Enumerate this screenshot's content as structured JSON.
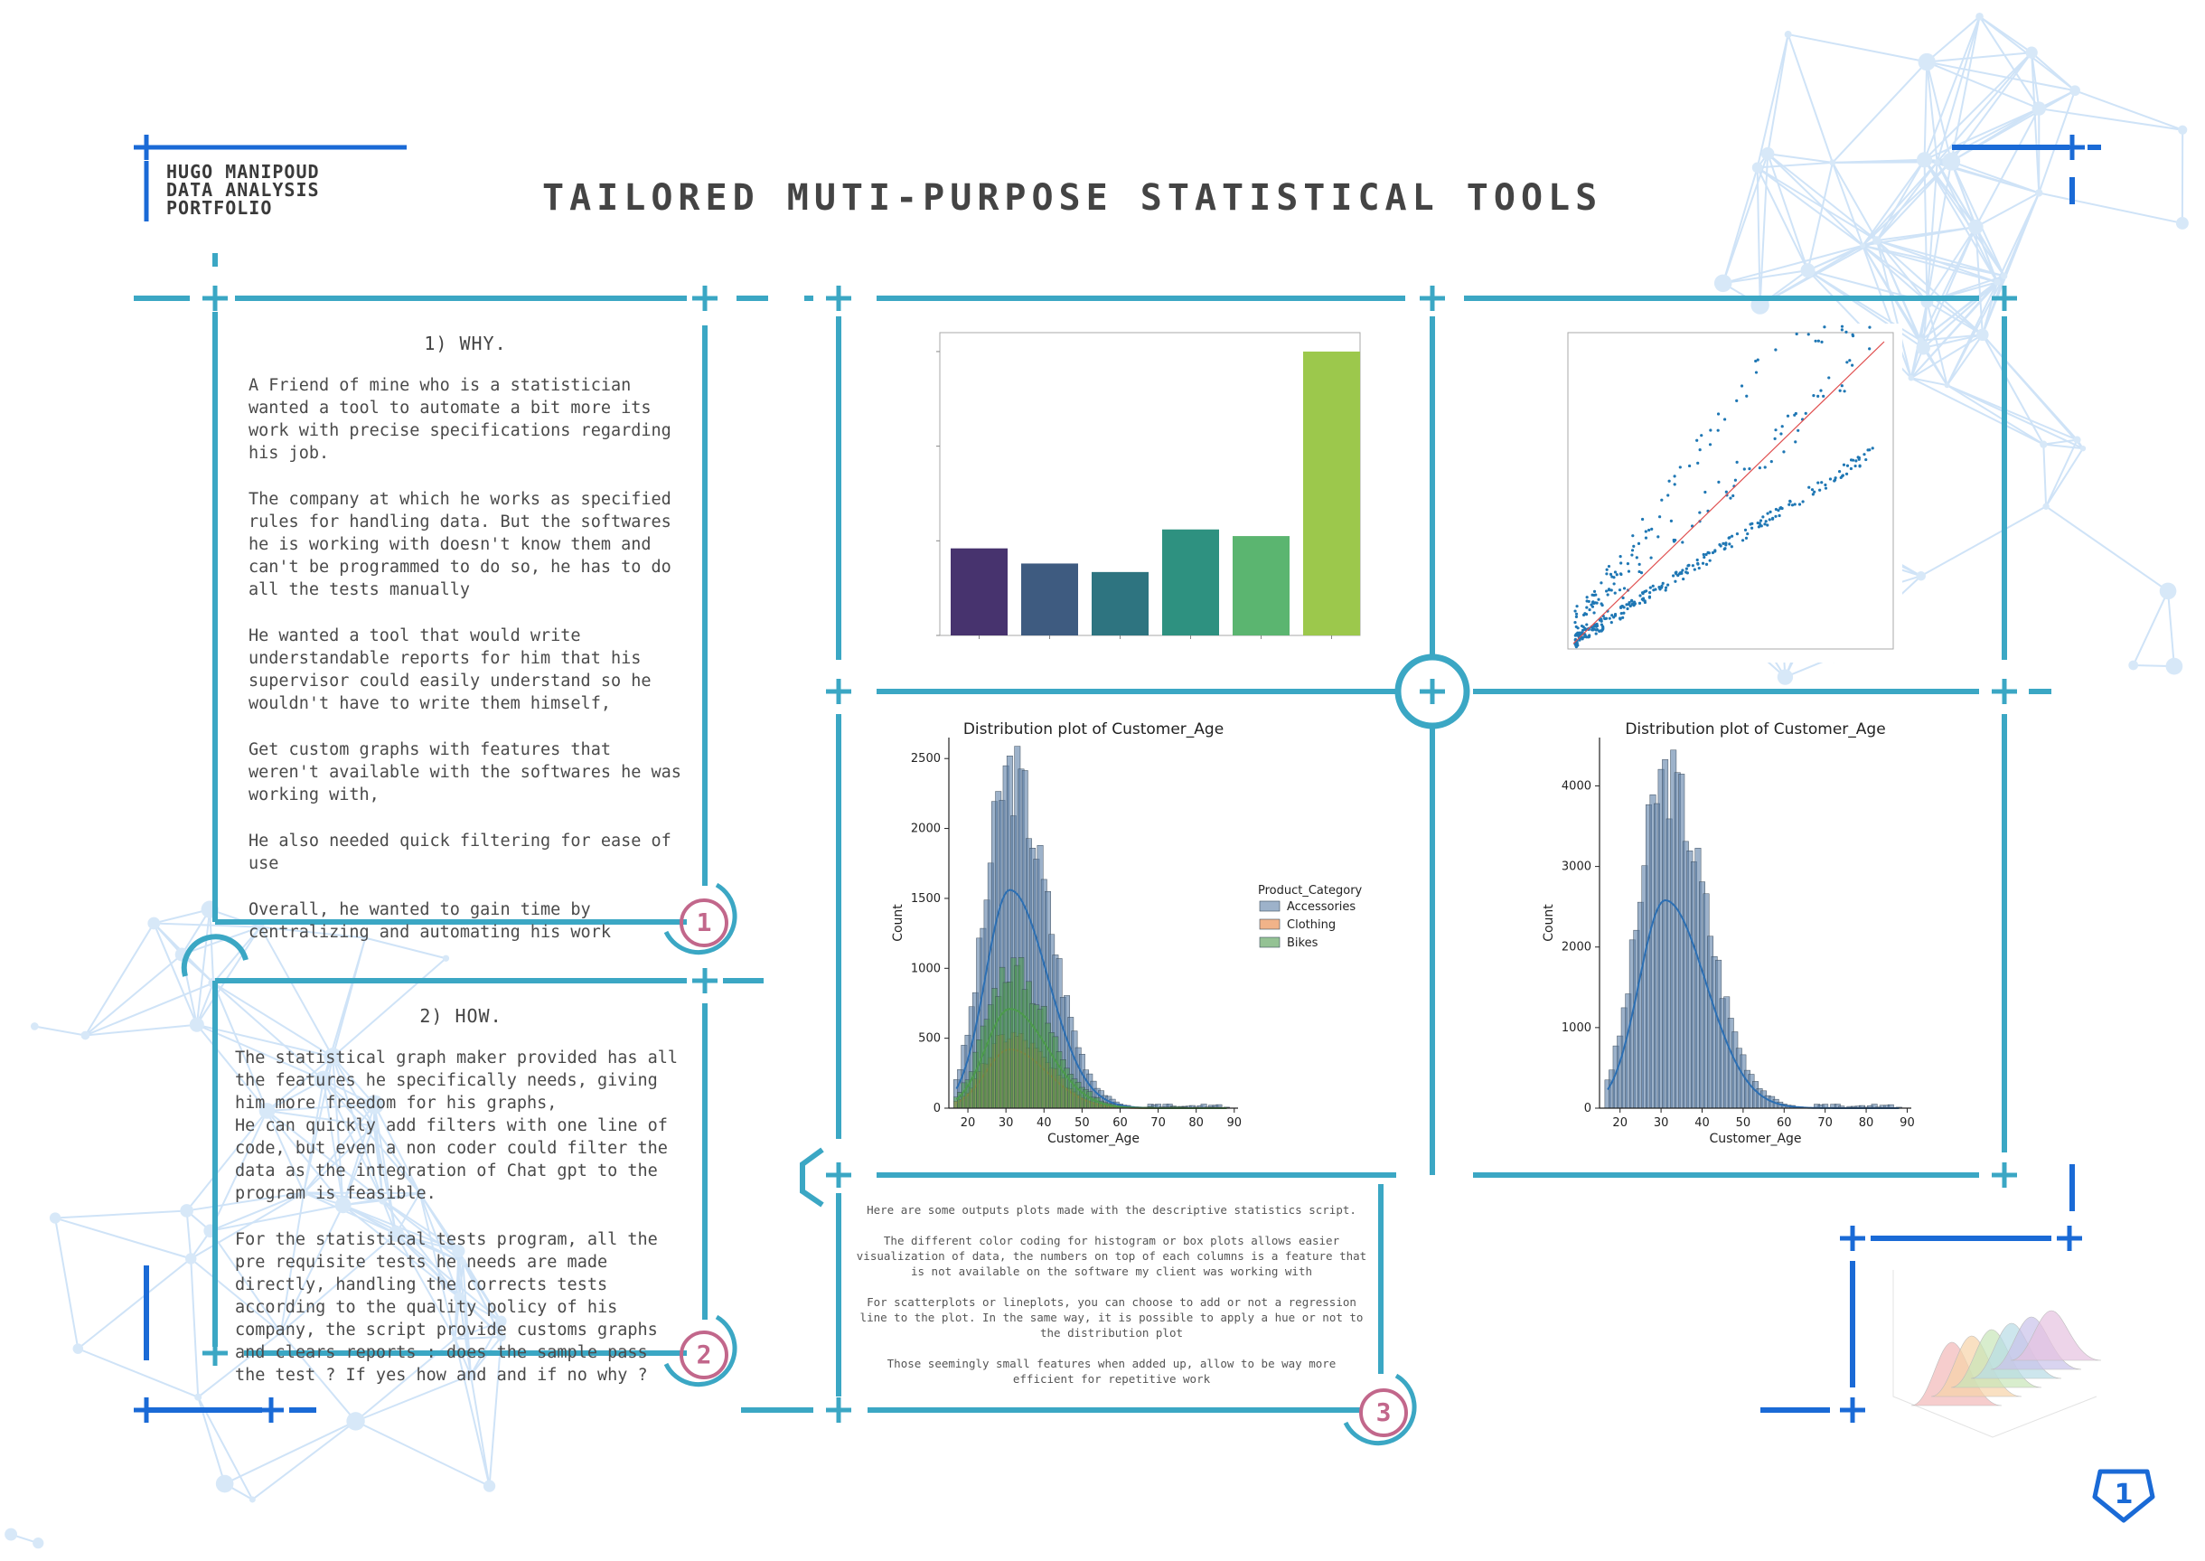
{
  "header": {
    "author_lines": [
      "Hugo Manipoud",
      "Data Analysis",
      "Portfolio"
    ],
    "title": "Tailored muti-purpose statistical tools"
  },
  "colors": {
    "frame": "#3ba7c4",
    "accent_blue": "#1a6ad6",
    "badge": "#c2678b"
  },
  "why": {
    "heading": "1) WHY.",
    "paragraphs": [
      "A Friend of mine who is a statistician wanted a tool to automate a bit more its work with precise specifications regarding his job.",
      "The company at which he works as specified rules for handling data. But the softwares he is working with doesn't know them and can't be programmed to do so, he has to do all the tests manually",
      "He wanted a tool that would write understandable reports for him that his supervisor could easily understand so he wouldn't have to write them himself,",
      "Get custom graphs with features that weren't available with the softwares he was working with,",
      "He also needed quick filtering for ease of use",
      "Overall, he wanted to gain time by centralizing and automating his work"
    ],
    "badge": "1"
  },
  "how": {
    "heading": "2) HOW.",
    "paragraphs": [
      "The statistical graph maker provided has all the features he specifically needs, giving him more freedom for his graphs,\nHe can quickly add filters with one line of code, but even a non coder could filter the data as the integration of Chat gpt to the program is feasible.",
      "For the statistical tests program, all the pre requisite tests he needs are made directly, handling the corrects tests according to the quality policy of his company, the script provide customs graphs and clears reports : does the sample pass the test ? If yes how and and if no why ?"
    ],
    "badge": "2"
  },
  "caption": {
    "paragraphs": [
      "Here are some outputs plots  made with the descriptive statistics script.",
      "The different color coding for histogram or box plots allows easier visualization of data, the numbers on top of each columns is a feature that is not available on the software my client was working with",
      "For scatterplots or lineplots, you can choose to add or not a regression line to the plot. In the same way, it is possible to apply a hue or not to the distribution plot",
      "Those seemingly small features when added up, allow to be way more efficient for repetitive work"
    ],
    "badge": "3"
  },
  "page_number": "1",
  "chart_data": [
    {
      "type": "bar",
      "title": "",
      "categories": [
        "",
        "",
        "",
        "",
        "",
        ""
      ],
      "values": [
        0.92,
        0.76,
        0.67,
        1.12,
        1.05,
        3.0
      ],
      "colors": [
        "#47336e",
        "#3e5b80",
        "#2e7480",
        "#2e9180",
        "#5bb570",
        "#9cc84c"
      ],
      "ylim": [
        0,
        3.2
      ]
    },
    {
      "type": "scatter",
      "title": "",
      "regression_line": true,
      "point_color": "#1f77b4",
      "line_color": "#e05050"
    },
    {
      "type": "histogram",
      "title": "Distribution plot of Customer_Age",
      "xlabel": "Customer_Age",
      "ylabel": "Count",
      "xlim": [
        15,
        91
      ],
      "ylim": [
        0,
        2650
      ],
      "xticks": [
        20,
        30,
        40,
        50,
        60,
        70,
        80,
        90
      ],
      "yticks": [
        0,
        500,
        1000,
        1500,
        2000,
        2500
      ],
      "legend_title": "Product_Category",
      "legend_position": "right",
      "series": [
        {
          "name": "Accessories",
          "color": "#5b7fa6",
          "peak": 2550,
          "kde_peak": 1560
        },
        {
          "name": "Clothing",
          "color": "#e8813a",
          "peak": 560,
          "kde_peak": 420
        },
        {
          "name": "Bikes",
          "color": "#4c9a4c",
          "peak": 1080,
          "kde_peak": 710
        }
      ]
    },
    {
      "type": "histogram",
      "title": "Distribution plot of Customer_Age",
      "xlabel": "Customer_Age",
      "ylabel": "Count",
      "xlim": [
        15,
        91
      ],
      "ylim": [
        0,
        4600
      ],
      "xticks": [
        20,
        30,
        40,
        50,
        60,
        70,
        80,
        90
      ],
      "yticks": [
        0,
        1000,
        2000,
        3000,
        4000
      ],
      "series": [
        {
          "name": "",
          "color": "#5b7fa6",
          "peak": 4380,
          "kde_peak": 2580
        }
      ]
    }
  ]
}
